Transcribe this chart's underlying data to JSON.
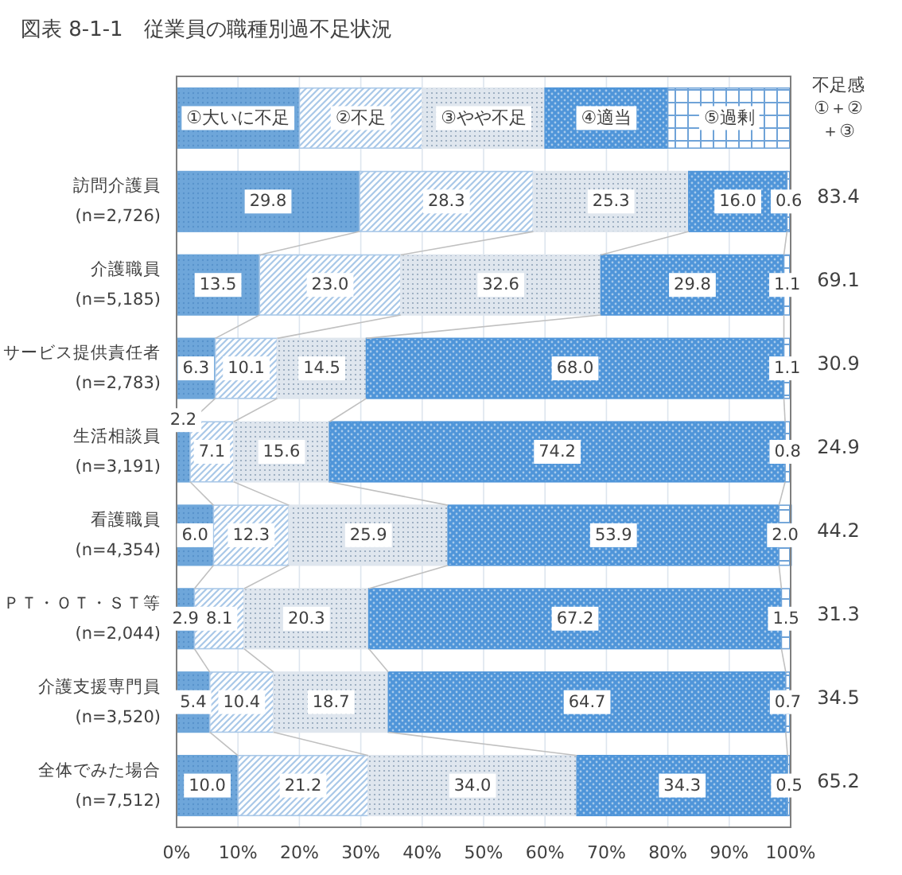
{
  "chart_data": {
    "type": "bar",
    "orientation": "horizontal",
    "stacked": true,
    "title": "図表 8-1-1　従業員の職種別過不足状況",
    "categories": [
      "訪問介護員\n(n=2,726)",
      "介護職員\n(n=5,185)",
      "サービス提供責任者\n(n=2,783)",
      "生活相談員\n(n=3,191)",
      "看護職員\n(n=4,354)",
      "ＰＴ・ＯＴ・ＳＴ等\n(n=2,044)",
      "介護支援専門員\n(n=3,520)",
      "全体でみた場合\n(n=7,512)"
    ],
    "series": [
      {
        "name": "①大いに不足",
        "color": "#6ea6da",
        "values": [
          29.8,
          13.5,
          6.3,
          2.2,
          6.0,
          2.9,
          5.4,
          10.0
        ],
        "value_labels": [
          "29.8",
          "13.5",
          "6.3",
          "2.2",
          "6.0",
          "2.9",
          "5.4",
          "10.0"
        ]
      },
      {
        "name": "②不足",
        "color": "#a9c8e8",
        "values": [
          28.3,
          23.0,
          10.1,
          7.1,
          12.3,
          8.1,
          10.4,
          21.2
        ],
        "value_labels": [
          "28.3",
          "23.0",
          "10.1",
          "7.1",
          "12.3",
          "8.1",
          "10.4",
          "21.2"
        ]
      },
      {
        "name": "③やや不足",
        "color": "#dfe6ee",
        "values": [
          25.3,
          32.6,
          14.5,
          15.6,
          25.9,
          20.3,
          18.7,
          34.0
        ],
        "value_labels": [
          "25.3",
          "32.6",
          "14.5",
          "15.6",
          "25.9",
          "20.3",
          "18.7",
          "34.0"
        ]
      },
      {
        "name": "④適当",
        "color": "#4f95d9",
        "values": [
          16.0,
          29.8,
          68.0,
          74.2,
          53.9,
          67.2,
          64.7,
          34.3
        ],
        "value_labels": [
          "16.0",
          "29.8",
          "68.0",
          "74.2",
          "53.9",
          "67.2",
          "64.7",
          "34.3"
        ]
      },
      {
        "name": "⑤過剰",
        "color": "#6fa3d8",
        "values": [
          0.6,
          1.1,
          1.1,
          0.8,
          2.0,
          1.5,
          0.7,
          0.5
        ],
        "value_labels": [
          "0.6",
          "1.1",
          "1.1",
          "0.8",
          "2.0",
          "1.5",
          "0.7",
          "0.5"
        ]
      }
    ],
    "xlim": [
      0,
      100
    ],
    "xticks": [
      {
        "value": 0,
        "label": "0%"
      },
      {
        "value": 10,
        "label": "10%"
      },
      {
        "value": 20,
        "label": "20%"
      },
      {
        "value": 30,
        "label": "30%"
      },
      {
        "value": 40,
        "label": "40%"
      },
      {
        "value": 50,
        "label": "50%"
      },
      {
        "value": 60,
        "label": "60%"
      },
      {
        "value": 70,
        "label": "70%"
      },
      {
        "value": 80,
        "label": "80%"
      },
      {
        "value": 90,
        "label": "90%"
      },
      {
        "value": 100,
        "label": "100%"
      }
    ],
    "grid": "x",
    "legend": "top",
    "annotations": [
      "不足感\n①＋②\n＋③",
      "83.4",
      "69.1",
      "30.9",
      "24.9",
      "44.2",
      "31.3",
      "34.5",
      "65.2"
    ]
  }
}
